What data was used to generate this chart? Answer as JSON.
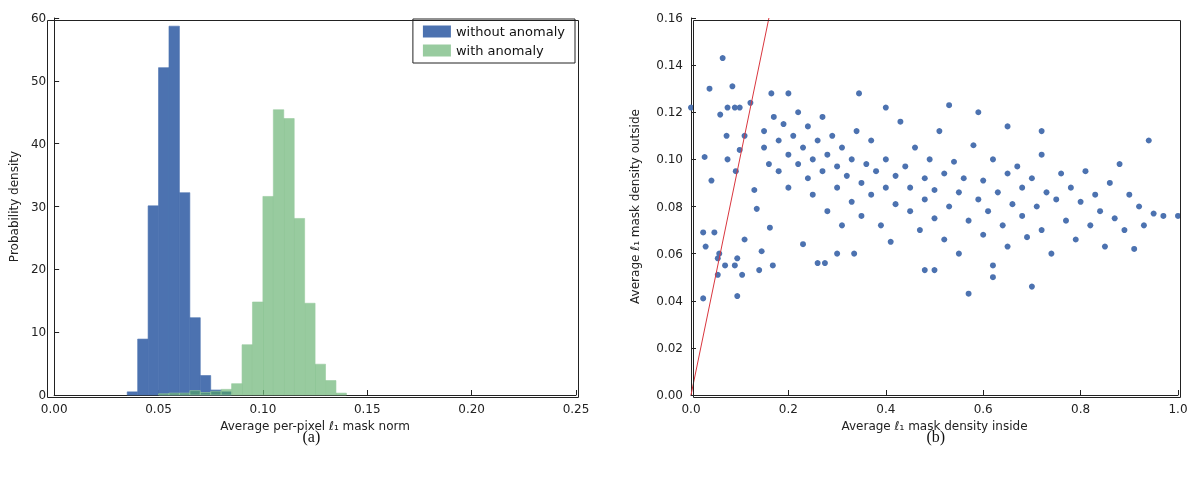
{
  "chart_data": [
    {
      "type": "histogram",
      "xlabel": "Average per-pixel ℓ₁ mask norm",
      "ylabel": "Probability density",
      "bins": [
        0.035,
        0.04,
        0.045,
        0.05,
        0.055,
        0.06,
        0.065,
        0.07,
        0.075,
        0.08,
        0.085,
        0.09,
        0.095,
        0.1,
        0.105,
        0.11,
        0.115,
        0.12,
        0.125,
        0.13,
        0.135,
        0.14
      ],
      "series": [
        {
          "name": "without anomaly",
          "color": "#4c72b0",
          "values": [
            0.5,
            8.9,
            30.1,
            52.1,
            58.7,
            32.2,
            12.3,
            3.1,
            0.8,
            0.5,
            0,
            0,
            0,
            0,
            0,
            0,
            0,
            0,
            0,
            0,
            0
          ]
        },
        {
          "name": "with anomaly",
          "color": "#98cb9f",
          "values": [
            0,
            0,
            0,
            0.2,
            0.3,
            0.3,
            0.7,
            0.4,
            0.6,
            0.9,
            1.8,
            8.0,
            14.8,
            31.6,
            45.4,
            44.0,
            28.1,
            14.6,
            4.9,
            2.3,
            0.3
          ]
        }
      ],
      "xlim": [
        0,
        0.25
      ],
      "xticks": [
        {
          "value": 0,
          "label": "0.00"
        },
        0.05,
        {
          "value": 0.1,
          "label": "0.10"
        },
        0.15,
        {
          "value": 0.2,
          "label": "0.20"
        },
        0.25
      ],
      "ylim": [
        0,
        60
      ],
      "yticks": [
        0,
        10,
        20,
        30,
        40,
        50,
        60
      ],
      "legend": "top right",
      "grid": false,
      "annotations": [
        "(a)"
      ]
    },
    {
      "type": "scatter",
      "xlabel": "Average ℓ₁ mask density inside",
      "ylabel": "Average ℓ₁ mask density outside",
      "series": [
        {
          "type": "scatter",
          "color": "#4c72b0",
          "marker": "circle",
          "x": [
            0.025,
            0.065,
            0.038,
            0.085,
            0.0,
            0.028,
            0.042,
            0.025,
            0.03,
            0.048,
            0.06,
            0.073,
            0.075,
            0.092,
            0.095,
            0.095,
            0.09,
            0.07,
            0.055,
            0.055,
            0.058,
            0.11,
            0.105,
            0.14,
            0.145,
            0.162,
            0.168,
            0.135,
            0.13,
            0.122,
            0.1,
            0.09,
            0.075,
            0.1,
            0.11,
            0.345,
            0.2,
            0.165,
            0.4,
            0.23,
            0.275,
            0.3,
            0.335,
            0.57,
            0.7,
            0.62,
            0.97,
            0.94,
            1.0,
            0.15,
            0.15,
            0.16,
            0.17,
            0.18,
            0.18,
            0.19,
            0.2,
            0.2,
            0.21,
            0.22,
            0.22,
            0.23,
            0.24,
            0.24,
            0.25,
            0.25,
            0.26,
            0.27,
            0.27,
            0.28,
            0.28,
            0.29,
            0.3,
            0.3,
            0.31,
            0.31,
            0.32,
            0.33,
            0.33,
            0.34,
            0.35,
            0.35,
            0.36,
            0.37,
            0.37,
            0.38,
            0.39,
            0.4,
            0.4,
            0.41,
            0.42,
            0.42,
            0.43,
            0.44,
            0.45,
            0.45,
            0.46,
            0.47,
            0.48,
            0.48,
            0.49,
            0.5,
            0.5,
            0.51,
            0.52,
            0.52,
            0.53,
            0.54,
            0.55,
            0.55,
            0.56,
            0.57,
            0.58,
            0.59,
            0.6,
            0.6,
            0.61,
            0.62,
            0.62,
            0.63,
            0.64,
            0.65,
            0.65,
            0.66,
            0.67,
            0.68,
            0.68,
            0.69,
            0.7,
            0.71,
            0.72,
            0.72,
            0.73,
            0.74,
            0.75,
            0.76,
            0.77,
            0.78,
            0.79,
            0.8,
            0.81,
            0.82,
            0.83,
            0.84,
            0.85,
            0.86,
            0.87,
            0.88,
            0.89,
            0.9,
            0.91,
            0.92,
            0.93,
            0.95,
            0.53,
            0.59,
            0.65,
            0.72,
            0.5,
            0.48,
            0.26
          ],
          "values": [
            0.041,
            0.143,
            0.13,
            0.131,
            0.122,
            0.101,
            0.091,
            0.069,
            0.063,
            0.069,
            0.119,
            0.11,
            0.1,
            0.095,
            0.042,
            0.058,
            0.055,
            0.055,
            0.051,
            0.058,
            0.06,
            0.066,
            0.051,
            0.053,
            0.061,
            0.071,
            0.055,
            0.079,
            0.087,
            0.124,
            0.122,
            0.122,
            0.122,
            0.104,
            0.11,
            0.128,
            0.128,
            0.128,
            0.122,
            0.064,
            0.056,
            0.06,
            0.06,
            0.043,
            0.046,
            0.05,
            0.076,
            0.108,
            0.076,
            0.105,
            0.112,
            0.098,
            0.118,
            0.108,
            0.095,
            0.115,
            0.102,
            0.088,
            0.11,
            0.12,
            0.098,
            0.105,
            0.092,
            0.114,
            0.1,
            0.085,
            0.108,
            0.118,
            0.095,
            0.102,
            0.078,
            0.11,
            0.097,
            0.088,
            0.105,
            0.072,
            0.093,
            0.1,
            0.082,
            0.112,
            0.09,
            0.076,
            0.098,
            0.085,
            0.108,
            0.095,
            0.072,
            0.1,
            0.088,
            0.065,
            0.093,
            0.081,
            0.116,
            0.097,
            0.078,
            0.088,
            0.105,
            0.07,
            0.092,
            0.083,
            0.1,
            0.075,
            0.087,
            0.112,
            0.094,
            0.066,
            0.08,
            0.099,
            0.086,
            0.06,
            0.092,
            0.074,
            0.106,
            0.083,
            0.091,
            0.068,
            0.078,
            0.1,
            0.055,
            0.086,
            0.072,
            0.094,
            0.063,
            0.081,
            0.097,
            0.076,
            0.088,
            0.067,
            0.092,
            0.08,
            0.07,
            0.102,
            0.086,
            0.06,
            0.083,
            0.094,
            0.074,
            0.088,
            0.066,
            0.082,
            0.095,
            0.072,
            0.085,
            0.078,
            0.063,
            0.09,
            0.075,
            0.098,
            0.07,
            0.085,
            0.062,
            0.08,
            0.072,
            0.077,
            0.123,
            0.12,
            0.114,
            0.112,
            0.053,
            0.053,
            0.056
          ]
        },
        {
          "type": "line",
          "color": "#d9363e",
          "x": [
            0,
            0.16
          ],
          "values": [
            0,
            0.16
          ]
        }
      ],
      "xlim": [
        0,
        1
      ],
      "xticks": [
        {
          "value": 0,
          "label": "0.0"
        },
        0.2,
        0.4,
        0.6,
        0.8,
        {
          "value": 1,
          "label": "1.0"
        }
      ],
      "ylim": [
        0,
        0.16
      ],
      "yticks": [
        {
          "value": 0,
          "label": "0.00"
        },
        0.02,
        0.04,
        0.06,
        0.08,
        {
          "value": 0.1,
          "label": "0.10"
        },
        0.12,
        0.14,
        0.16
      ],
      "grid": false,
      "annotations": [
        "(b)"
      ]
    }
  ]
}
